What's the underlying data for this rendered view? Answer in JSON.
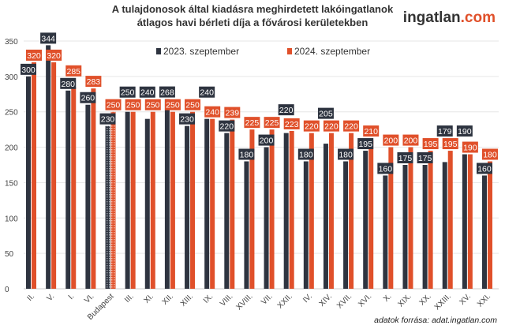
{
  "chart_data": {
    "type": "bar",
    "title": "A tulajdonosok által kiadásra meghirdetett lakóingatlanok átlagos havi bérleti díja a fővárosi kerületekben",
    "title_lines": [
      "A tulajdonosok által kiadásra meghirdetett lakóingatlanok",
      "átlagos havi bérleti díja a fővárosi kerületekben"
    ],
    "categories": [
      "II.",
      "V.",
      "I.",
      "VI.",
      "Budapest",
      "III.",
      "XI.",
      "XII.",
      "XIII.",
      "IX.",
      "VIII.",
      "XVIII.",
      "VII.",
      "XXII.",
      "IV.",
      "XIV.",
      "XVII.",
      "XVI.",
      "X.",
      "XIX.",
      "XX.",
      "XXIII.",
      "XV.",
      "XXI."
    ],
    "series": [
      {
        "name": "2023. szeptember",
        "color": "#2e3440",
        "values": [
          300,
          344,
          280,
          260,
          230,
          250,
          240,
          268,
          230,
          240,
          220,
          180,
          200,
          220,
          180,
          205,
          180,
          195,
          160,
          175,
          175,
          179,
          190,
          160
        ]
      },
      {
        "name": "2024. szeptember",
        "color": "#e0502a",
        "values": [
          320,
          320,
          285,
          283,
          250,
          250,
          250,
          250,
          250,
          240,
          239,
          225,
          225,
          223,
          220,
          220,
          220,
          210,
          200,
          200,
          195,
          195,
          190,
          180
        ]
      }
    ],
    "highlighted_category": "Budapest",
    "ylim": [
      0,
      350
    ],
    "yticks": [
      0,
      50,
      100,
      150,
      200,
      250,
      300,
      350
    ],
    "grid": true,
    "legend": "top-center",
    "xlabel": "",
    "ylabel": ""
  },
  "branding": {
    "logo_main": "ingatlan",
    "logo_suffix": ".com",
    "suffix_color": "#e0502a"
  },
  "source": "adatok forrása: adat.ingatlan.com"
}
